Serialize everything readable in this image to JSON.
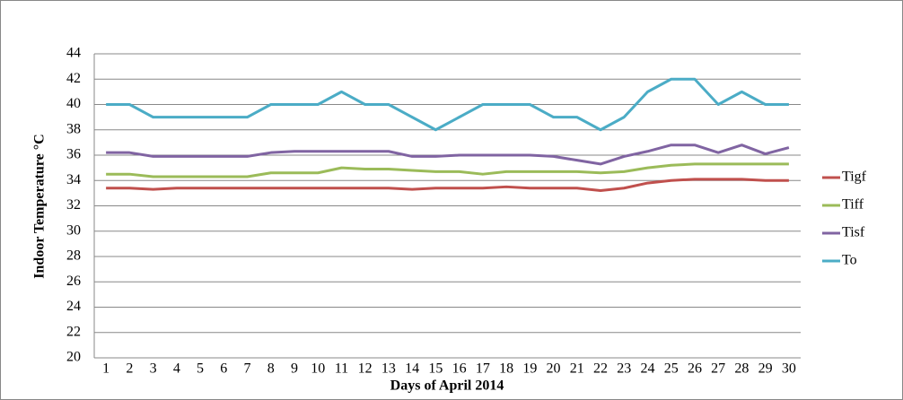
{
  "chart_data": {
    "type": "line",
    "y_label": "Indoor Temperature °C",
    "x_label": "Days of April 2014",
    "categories": [
      "1",
      "2",
      "3",
      "4",
      "5",
      "6",
      "7",
      "8",
      "9",
      "10",
      "11",
      "12",
      "13",
      "14",
      "15",
      "16",
      "17",
      "18",
      "19",
      "20",
      "21",
      "22",
      "23",
      "24",
      "25",
      "26",
      "27",
      "28",
      "29",
      "30"
    ],
    "series": [
      {
        "name": "Tigf",
        "color": "#c0504d",
        "values": [
          33.4,
          33.4,
          33.3,
          33.4,
          33.4,
          33.4,
          33.4,
          33.4,
          33.4,
          33.4,
          33.4,
          33.4,
          33.4,
          33.3,
          33.4,
          33.4,
          33.4,
          33.5,
          33.4,
          33.4,
          33.4,
          33.2,
          33.4,
          33.8,
          34,
          34.1,
          34.1,
          34.1,
          34,
          34
        ]
      },
      {
        "name": "Tiff",
        "color": "#9bbb59",
        "values": [
          34.5,
          34.5,
          34.3,
          34.3,
          34.3,
          34.3,
          34.3,
          34.6,
          34.6,
          34.6,
          35,
          34.9,
          34.9,
          34.8,
          34.7,
          34.7,
          34.5,
          34.7,
          34.7,
          34.7,
          34.7,
          34.6,
          34.7,
          35,
          35.2,
          35.3,
          35.3,
          35.3,
          35.3,
          35.3
        ]
      },
      {
        "name": "Tisf",
        "color": "#8064a2",
        "values": [
          36.2,
          36.2,
          35.9,
          35.9,
          35.9,
          35.9,
          35.9,
          36.2,
          36.3,
          36.3,
          36.3,
          36.3,
          36.3,
          35.9,
          35.9,
          36,
          36,
          36,
          36,
          35.9,
          35.6,
          35.3,
          35.9,
          36.3,
          36.8,
          36.8,
          36.2,
          36.8,
          36.1,
          36.6
        ]
      },
      {
        "name": "To",
        "color": "#4bacc6",
        "values": [
          40,
          40,
          39,
          39,
          39,
          39,
          39,
          40,
          40,
          40,
          41,
          40,
          40,
          39,
          38,
          39,
          40,
          40,
          40,
          39,
          39,
          38,
          39,
          41,
          42,
          42,
          40,
          41,
          40,
          40
        ]
      }
    ],
    "ylim": [
      20,
      44
    ],
    "yticks": [
      20,
      22,
      24,
      26,
      28,
      30,
      32,
      34,
      36,
      38,
      40,
      42,
      44
    ],
    "grid": true,
    "legend": "right"
  }
}
